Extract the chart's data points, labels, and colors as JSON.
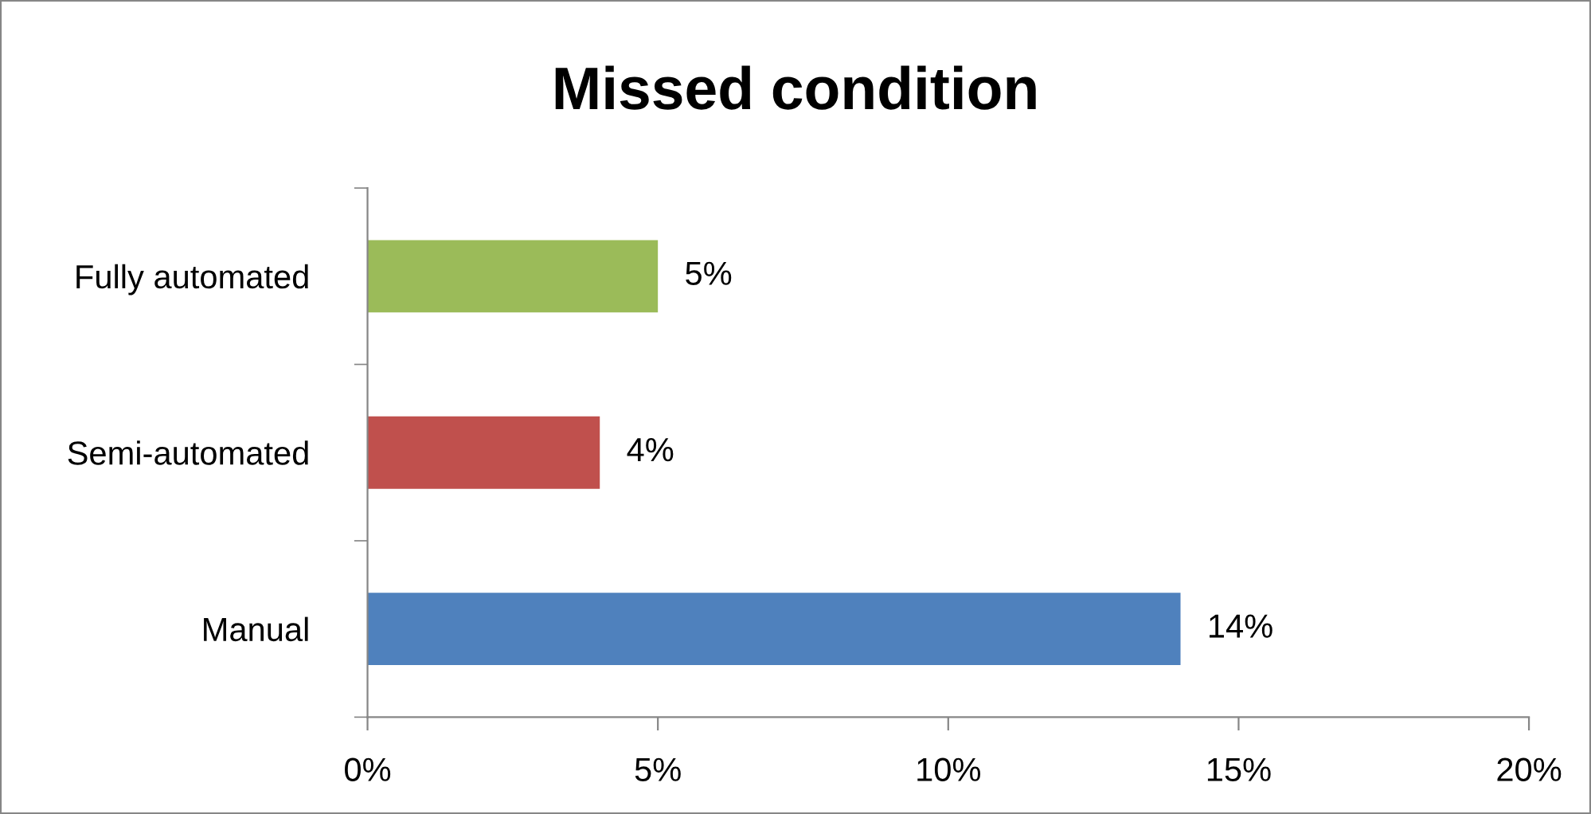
{
  "chart_data": {
    "type": "bar",
    "orientation": "horizontal",
    "title": "Missed condition",
    "categories": [
      "Fully automated",
      "Semi-automated",
      "Manual"
    ],
    "values": [
      5,
      4,
      14
    ],
    "colors": [
      "#9bbb59",
      "#c0504d",
      "#4f81bd"
    ],
    "value_labels": [
      "5%",
      "4%",
      "14%"
    ],
    "xlim": [
      0,
      20
    ],
    "xticks": [
      {
        "value": 0,
        "label": "0%"
      },
      {
        "value": 5,
        "label": "5%"
      },
      {
        "value": 10,
        "label": "10%"
      },
      {
        "value": 15,
        "label": "15%"
      },
      {
        "value": 20,
        "label": "20%"
      }
    ],
    "grid": false,
    "legend": false
  }
}
